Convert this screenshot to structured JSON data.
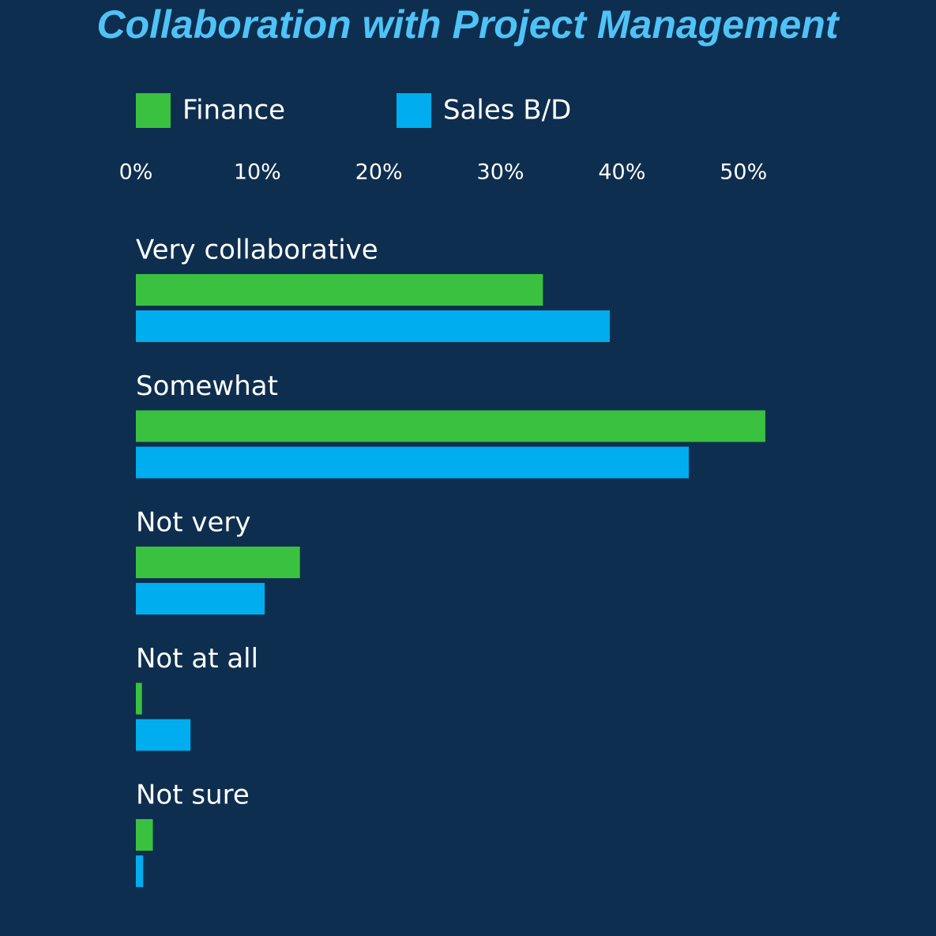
{
  "chart_data": {
    "type": "hbar",
    "title": "Collaboration with Project Management",
    "categories": [
      "Very collaborative",
      "Somewhat",
      "Not very",
      "Not at all",
      "Not sure"
    ],
    "series": [
      {
        "name": "Finance",
        "color": "#39c13f",
        "values": [
          33.5,
          51.8,
          13.5,
          0.5,
          1.4
        ]
      },
      {
        "name": "Sales B/D",
        "color": "#00adee",
        "values": [
          39,
          45.5,
          10.6,
          4.5,
          0.6
        ]
      }
    ],
    "xlim": [
      0,
      52
    ],
    "xticks": [
      {
        "value": 0,
        "label": "0%"
      },
      {
        "value": 10,
        "label": "10%"
      },
      {
        "value": 20,
        "label": "20%"
      },
      {
        "value": 30,
        "label": "30%"
      },
      {
        "value": 40,
        "label": "40%"
      },
      {
        "value": 50,
        "label": "50%"
      }
    ],
    "grid": false
  }
}
